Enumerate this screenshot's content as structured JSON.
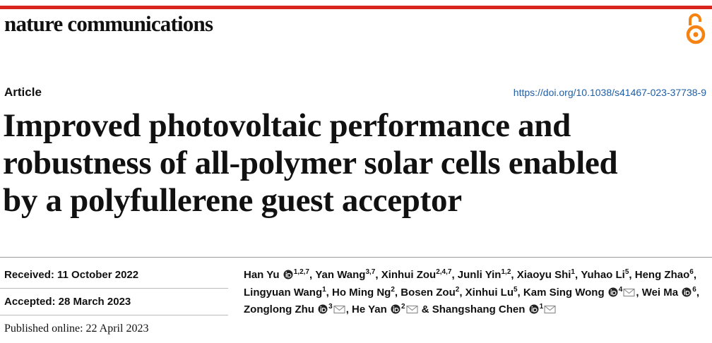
{
  "header": {
    "journal": "nature communications"
  },
  "article_type": "Article",
  "doi": "https://doi.org/10.1038/s41467-023-37738-9",
  "title_lines": [
    "Improved photovoltaic performance and",
    "robustness of all-polymer solar cells enabled",
    "by a polyfullerene guest acceptor"
  ],
  "dates": {
    "received": "Received: 11 October 2022",
    "accepted": "Accepted: 28 March 2023",
    "published": "Published online: 22 April 2023"
  },
  "separator": ", ",
  "final_separator": "&",
  "authors": [
    {
      "name": "Han Yu",
      "affiliations": "1,2,7",
      "orcid": true,
      "corresponding": false
    },
    {
      "name": "Yan Wang",
      "affiliations": "3,7",
      "orcid": false,
      "corresponding": false
    },
    {
      "name": "Xinhui Zou",
      "affiliations": "2,4,7",
      "orcid": false,
      "corresponding": false
    },
    {
      "name": "Junli Yin",
      "affiliations": "1,2",
      "orcid": false,
      "corresponding": false
    },
    {
      "name": "Xiaoyu Shi",
      "affiliations": "1",
      "orcid": false,
      "corresponding": false
    },
    {
      "name": "Yuhao Li",
      "affiliations": "5",
      "orcid": false,
      "corresponding": false
    },
    {
      "name": "Heng Zhao",
      "affiliations": "6",
      "orcid": false,
      "corresponding": false
    },
    {
      "name": "Lingyuan Wang",
      "affiliations": "1",
      "orcid": false,
      "corresponding": false
    },
    {
      "name": "Ho Ming Ng",
      "affiliations": "2",
      "orcid": false,
      "corresponding": false
    },
    {
      "name": "Bosen Zou",
      "affiliations": "2",
      "orcid": false,
      "corresponding": false
    },
    {
      "name": "Xinhui Lu",
      "affiliations": "5",
      "orcid": false,
      "corresponding": false
    },
    {
      "name": "Kam Sing Wong",
      "affiliations": "4",
      "orcid": true,
      "corresponding": true
    },
    {
      "name": "Wei Ma",
      "affiliations": "6",
      "orcid": true,
      "corresponding": false
    },
    {
      "name": "Zonglong Zhu",
      "affiliations": "3",
      "orcid": true,
      "corresponding": true
    },
    {
      "name": "He Yan",
      "affiliations": "2",
      "orcid": true,
      "corresponding": true
    },
    {
      "name": "Shangshang Chen",
      "affiliations": "1",
      "orcid": true,
      "corresponding": true
    }
  ]
}
